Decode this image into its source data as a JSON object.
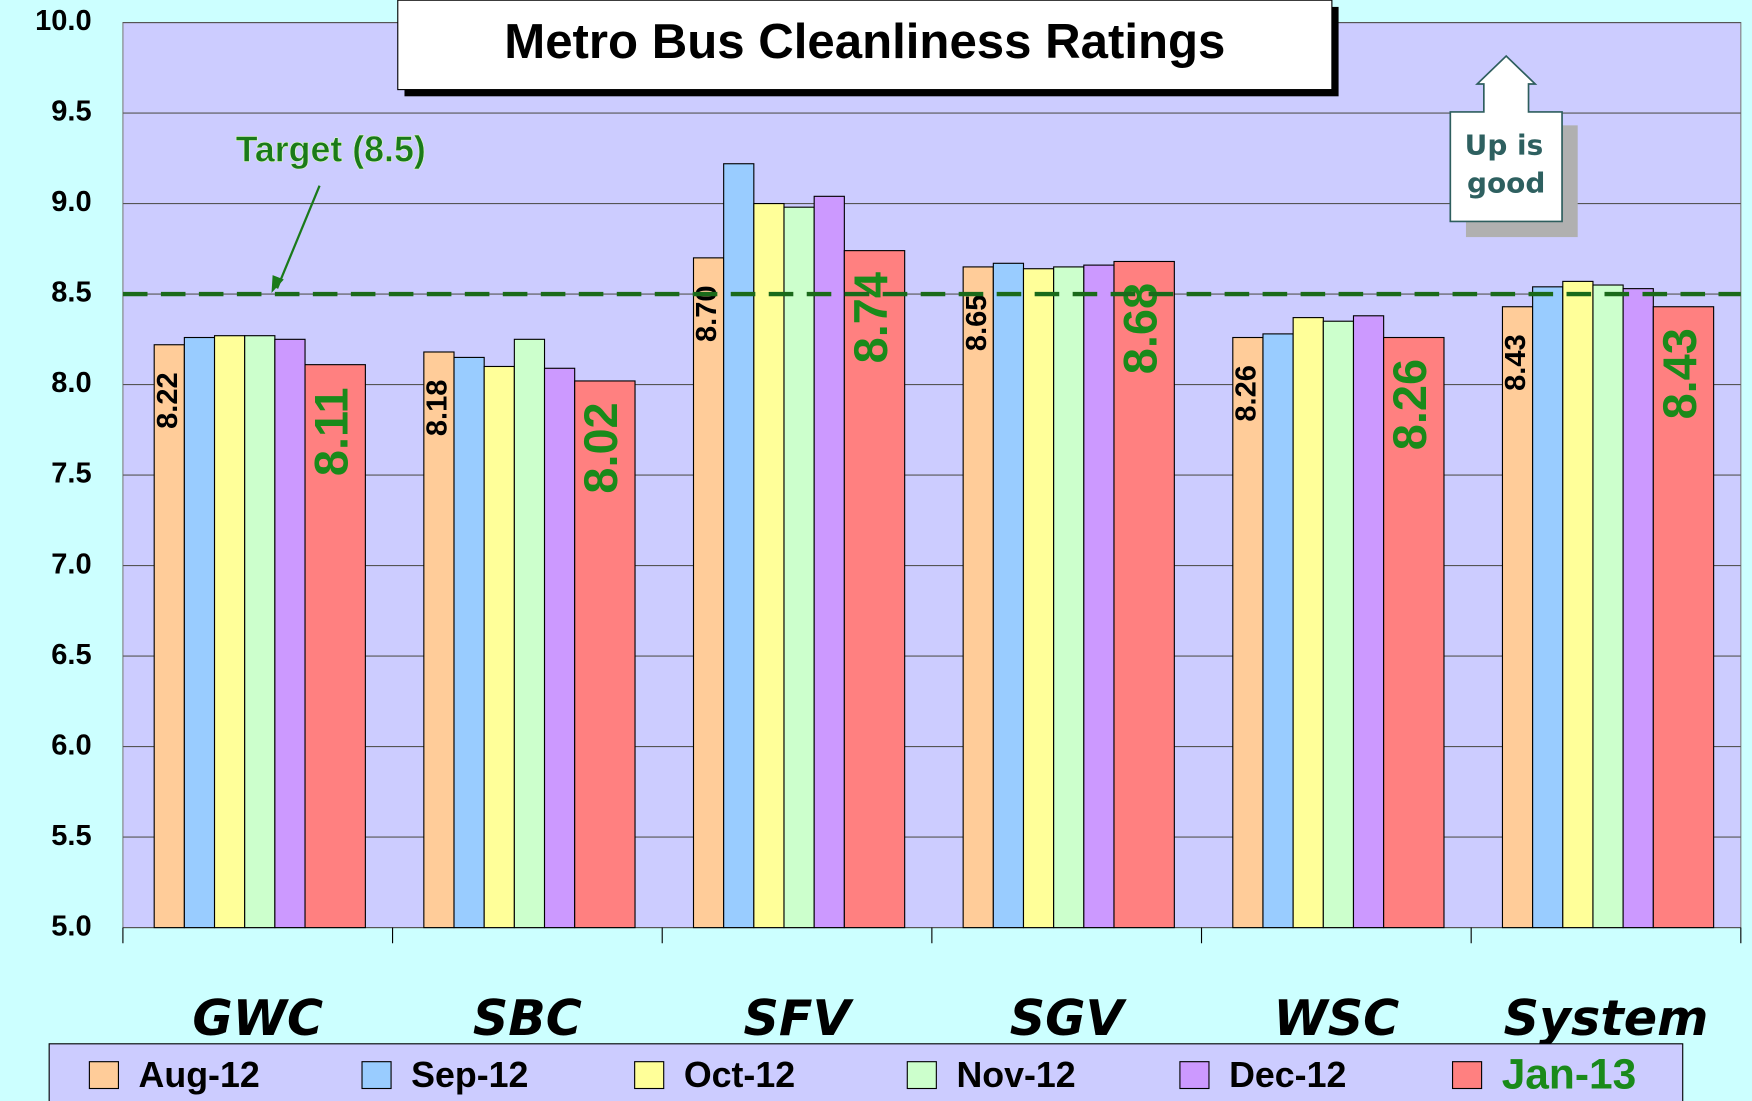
{
  "chart_data": {
    "type": "bar",
    "title": "Metro Bus Cleanliness Ratings",
    "categories": [
      "GWC",
      "SBC",
      "SFV",
      "SGV",
      "WSC",
      "System"
    ],
    "series": [
      {
        "name": "Aug-12",
        "color": "#ffcc99",
        "values": [
          8.22,
          8.18,
          8.7,
          8.65,
          8.26,
          8.43
        ],
        "value_labels": [
          "8.22",
          "8.18",
          "8.70",
          "8.65",
          "8.26",
          "8.43"
        ]
      },
      {
        "name": "Sep-12",
        "color": "#99ccff",
        "values": [
          8.26,
          8.15,
          9.22,
          8.67,
          8.28,
          8.54
        ]
      },
      {
        "name": "Oct-12",
        "color": "#ffff99",
        "values": [
          8.27,
          8.1,
          9.0,
          8.64,
          8.37,
          8.57
        ]
      },
      {
        "name": "Nov-12",
        "color": "#ccffcc",
        "values": [
          8.27,
          8.25,
          8.98,
          8.65,
          8.35,
          8.55
        ]
      },
      {
        "name": "Dec-12",
        "color": "#cc99ff",
        "values": [
          8.25,
          8.09,
          9.04,
          8.66,
          8.38,
          8.53
        ]
      },
      {
        "name": "Jan-13",
        "color": "#ff8080",
        "values": [
          8.11,
          8.02,
          8.74,
          8.68,
          8.26,
          8.43
        ],
        "value_labels": [
          "8.11",
          "8.02",
          "8.74",
          "8.68",
          "8.26",
          "8.43"
        ]
      }
    ],
    "ylim": [
      5,
      10
    ],
    "yticks": [
      {
        "value": 5,
        "label": "5.0"
      },
      {
        "value": 5.5,
        "label": "5.5"
      },
      {
        "value": 6,
        "label": "6.0"
      },
      {
        "value": 6.5,
        "label": "6.5"
      },
      {
        "value": 7,
        "label": "7.0"
      },
      {
        "value": 7.5,
        "label": "7.5"
      },
      {
        "value": 8,
        "label": "8.0"
      },
      {
        "value": 8.5,
        "label": "8.5"
      },
      {
        "value": 9,
        "label": "9.0"
      },
      {
        "value": 9.5,
        "label": "9.5"
      },
      {
        "value": 10,
        "label": "10.0"
      }
    ],
    "grid": true,
    "target": {
      "label": "Target (8.5)",
      "value": 8.5
    },
    "note": [
      "Up is",
      "good"
    ]
  }
}
